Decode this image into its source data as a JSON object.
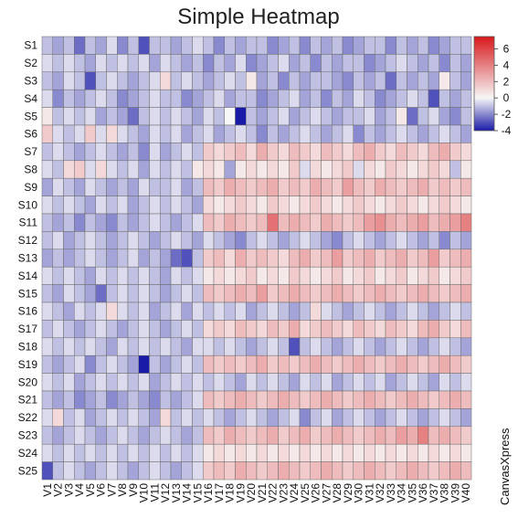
{
  "chart_data": {
    "type": "heatmap",
    "title": "Simple Heatmap",
    "rows": [
      "S1",
      "S2",
      "S3",
      "S4",
      "S5",
      "S6",
      "S7",
      "S8",
      "S9",
      "S10",
      "S11",
      "S12",
      "S13",
      "S14",
      "S15",
      "S16",
      "S17",
      "S18",
      "S19",
      "S20",
      "S21",
      "S22",
      "S23",
      "S24",
      "S25"
    ],
    "columns": [
      "V1",
      "V2",
      "V3",
      "V4",
      "V5",
      "V6",
      "V7",
      "V8",
      "V9",
      "V10",
      "V11",
      "V12",
      "V13",
      "V14",
      "V15",
      "V16",
      "V17",
      "V18",
      "V19",
      "V20",
      "V21",
      "V22",
      "V23",
      "V24",
      "V25",
      "V26",
      "V27",
      "V28",
      "V29",
      "V30",
      "V31",
      "V32",
      "V33",
      "V34",
      "V35",
      "V36",
      "V37",
      "V38",
      "V39",
      "V40"
    ],
    "values": [
      [
        -1,
        -1.5,
        -1,
        -2.5,
        -1,
        -1.5,
        -0.5,
        -2,
        -1,
        -3,
        -1,
        -1,
        -1.5,
        -1,
        -0.5,
        -1,
        -2,
        -1,
        -1.5,
        -1,
        -1,
        -2,
        -1.5,
        -1,
        -2,
        -1,
        -1.5,
        -1,
        -2,
        -1.5,
        -1,
        -1,
        -2,
        -1,
        -1.5,
        -1,
        -2,
        -1.5,
        -1,
        -1
      ],
      [
        -0.5,
        -1,
        -0.5,
        -1,
        -1.5,
        -0.5,
        -1,
        -0.5,
        -1,
        -0.5,
        -1.5,
        -0.5,
        -1,
        -1.5,
        -1,
        -2,
        -1,
        -1.5,
        -0.5,
        -2,
        -1.5,
        -1,
        -0.5,
        -1.5,
        -1,
        -2,
        -1,
        -1.5,
        -1,
        -1,
        -2,
        -1.5,
        -1,
        -0.5,
        -1,
        -1.5,
        -1,
        -2,
        -1,
        -1.5
      ],
      [
        -1,
        -1.5,
        -0.5,
        -1,
        -3,
        -1,
        -0.5,
        -1,
        -1.5,
        -1,
        -0.5,
        1,
        -1,
        -0.5,
        -1,
        -1.5,
        -1,
        -0.5,
        -1,
        0.5,
        -1.5,
        -1,
        -2,
        -1,
        -1.5,
        -1,
        -1,
        -1.5,
        -2,
        -1,
        -1.5,
        -1,
        -2.5,
        -1,
        -1.5,
        -1,
        -1.5,
        0.5,
        -1,
        -1.5
      ],
      [
        -0.5,
        -2,
        -1,
        -1.5,
        -1,
        -0.5,
        -1,
        -2,
        -1.5,
        -1,
        -0.5,
        -1,
        -1,
        -2,
        -1.5,
        -1,
        -0.5,
        -1.5,
        -1,
        -1,
        -2,
        -1.5,
        -1,
        -0.5,
        -1.5,
        -1,
        -2,
        -1,
        -1.5,
        -0.5,
        -1,
        -2,
        -1.5,
        -1,
        -0.5,
        -1,
        -3,
        -1,
        -1.5,
        -1
      ],
      [
        0.5,
        -1,
        -0.5,
        -1,
        -0.5,
        -1.5,
        -1,
        -1.5,
        -2.5,
        -1,
        -0.5,
        -1,
        -0.5,
        -1,
        -1.5,
        -0.5,
        -1,
        0,
        -4,
        -1,
        -1.5,
        -1,
        -0.5,
        -1.5,
        -1,
        -0.5,
        -1,
        -1.5,
        -1,
        -1,
        -0.5,
        -1.5,
        -1,
        0.5,
        -2.5,
        -1,
        -0.5,
        -1.5,
        -2,
        -1
      ],
      [
        1.5,
        -0.5,
        -1,
        -0.5,
        1.5,
        -0.5,
        1,
        -0.5,
        -1,
        -1.5,
        -0.5,
        -1,
        -0.5,
        -1.5,
        -1,
        -0.5,
        -1.5,
        -1,
        -0.5,
        -1,
        -2,
        -1,
        -1.5,
        -1,
        -0.5,
        -1,
        -1.5,
        -1,
        -0.5,
        -2,
        -1,
        -1.5,
        -1,
        -0.5,
        -1,
        -1.5,
        -1,
        -0.5,
        -1,
        -1.5
      ],
      [
        -1,
        -0.5,
        -1,
        -1.5,
        -1,
        -0.5,
        -1,
        -1.5,
        -1,
        -2,
        -0.5,
        -1.5,
        -1,
        -0.5,
        -1,
        1.5,
        1,
        1.5,
        2,
        1,
        2.5,
        1.5,
        1,
        2,
        1.5,
        1,
        2,
        1.5,
        1,
        2,
        2.5,
        1.5,
        1,
        2,
        1.5,
        1,
        2,
        2.5,
        1.5,
        1
      ],
      [
        -0.5,
        -1,
        1,
        1.5,
        -0.5,
        1,
        -0.5,
        -1,
        -0.5,
        -1.5,
        -0.5,
        -1,
        -0.5,
        -1,
        0.5,
        1,
        0.5,
        -1.5,
        0.5,
        1,
        0.5,
        1,
        0.5,
        1.5,
        -0.5,
        1,
        0.5,
        1,
        1.5,
        -0.5,
        1,
        0.5,
        1.5,
        1,
        0.5,
        1,
        1.5,
        1,
        -1,
        0.5
      ],
      [
        -1.5,
        -0.5,
        -1,
        -1.5,
        -0.5,
        -1,
        -1.5,
        -1,
        -1.5,
        -0.5,
        -1,
        -1,
        -0.5,
        -1.5,
        -1,
        2,
        1.5,
        2.5,
        2,
        1.5,
        2,
        2.5,
        1.5,
        2,
        1.5,
        2.5,
        2,
        1.5,
        3,
        2,
        1.5,
        2.5,
        2,
        1.5,
        2,
        2.5,
        1.5,
        2,
        1.5,
        2
      ],
      [
        -0.5,
        -1,
        -0.5,
        -1,
        -1.5,
        -0.5,
        -1,
        -0.5,
        -1.5,
        -1,
        -0.5,
        -1,
        -0.5,
        -1,
        -1.5,
        1,
        0.5,
        1,
        1.5,
        1,
        0.5,
        1.5,
        1,
        0.5,
        1,
        1.5,
        1,
        0.5,
        1,
        1.5,
        1,
        0.5,
        1,
        1.5,
        1,
        0.5,
        1,
        1.5,
        1,
        0.5
      ],
      [
        -1,
        -1.5,
        -1,
        -2,
        -1,
        -1.5,
        -2,
        -1,
        -1.5,
        -1,
        -0.5,
        -1,
        -1.5,
        -1,
        -0.5,
        2,
        1.5,
        2.5,
        2,
        1.5,
        2,
        4.5,
        2,
        2.5,
        2,
        1.5,
        2.5,
        2,
        1.5,
        2,
        3,
        3.5,
        2.5,
        2,
        2.5,
        3,
        2,
        2.5,
        3,
        4
      ],
      [
        -1,
        -0.5,
        -1.5,
        -1,
        -0.5,
        -1,
        -1.5,
        -1,
        -0.5,
        -1,
        -1.5,
        -1,
        -0.5,
        -1,
        -1.5,
        -0.5,
        -1,
        -1.5,
        -2,
        -1,
        -0.5,
        -1,
        -1.5,
        -1,
        -0.5,
        -1,
        -1.5,
        -2,
        -1,
        -0.5,
        -1,
        -1.5,
        -1,
        -0.5,
        -1,
        -1.5,
        -1,
        -2,
        -1,
        -1.5
      ],
      [
        -1.5,
        -1,
        -1.5,
        -1,
        -0.5,
        -1,
        -1.5,
        -1,
        -0.5,
        -1.5,
        -1,
        -1.5,
        -2.5,
        -3,
        -1,
        1.5,
        2,
        1,
        2.5,
        1.5,
        2,
        1.5,
        1,
        2,
        2.5,
        1.5,
        2,
        3,
        1.5,
        2,
        2.5,
        1.5,
        2,
        2.5,
        1.5,
        2,
        3,
        1.5,
        2,
        2.5
      ],
      [
        -0.5,
        -1,
        -0.5,
        -1,
        -1.5,
        -0.5,
        -1,
        -0.5,
        -1,
        -0.5,
        -1,
        -1.5,
        -0.5,
        -1,
        -0.5,
        0.5,
        1,
        0.5,
        1,
        1.5,
        0.5,
        1,
        0.5,
        1.5,
        1,
        0.5,
        1,
        1.5,
        0.5,
        1,
        1.5,
        0.5,
        1,
        1.5,
        0.5,
        1,
        1.5,
        0.5,
        1,
        1.5
      ],
      [
        -1,
        -1.5,
        -0.5,
        -1,
        -1.5,
        -2.5,
        -1,
        -0.5,
        -1,
        -0.5,
        -1,
        -1.5,
        -1,
        -0.5,
        -1,
        2,
        1.5,
        2,
        2.5,
        2,
        3,
        1.5,
        2,
        2.5,
        2,
        1.5,
        2,
        2.5,
        2,
        1.5,
        2,
        2.5,
        2,
        1.5,
        2,
        2.5,
        2,
        1.5,
        2,
        2.5
      ],
      [
        -0.5,
        -1,
        -1.5,
        -0.5,
        -1,
        -0.5,
        1,
        -0.5,
        -1,
        -0.5,
        -1.5,
        -1,
        -0.5,
        -1.5,
        -0.5,
        -1,
        -0.5,
        -1,
        -0.5,
        -1.5,
        -1,
        -0.5,
        -1,
        -1.5,
        -1,
        1,
        -0.5,
        -1,
        -1.5,
        -1,
        -0.5,
        -1,
        -1.5,
        -1,
        -0.5,
        -1,
        -1.5,
        -1,
        -0.5,
        -1
      ],
      [
        -1,
        -0.5,
        -1,
        -1.5,
        -1,
        -0.5,
        -1,
        -1.5,
        -1,
        -0.5,
        -1,
        -1.5,
        -1,
        -0.5,
        -1,
        1,
        1.5,
        1,
        2,
        1.5,
        1,
        2,
        1.5,
        2.5,
        1,
        1.5,
        2,
        1.5,
        1,
        2,
        1.5,
        1,
        2,
        1.5,
        1,
        2,
        2.5,
        1.5,
        1,
        2
      ],
      [
        -0.5,
        -1,
        -0.5,
        -1,
        -0.5,
        -1,
        -1.5,
        -0.5,
        -1,
        -0.5,
        -1,
        -0.5,
        -1,
        -1.5,
        -0.5,
        -0.5,
        -1,
        -0.5,
        -1,
        -1.5,
        -1,
        -0.5,
        -1,
        -3,
        -1,
        -0.5,
        -1,
        -1.5,
        -1,
        -0.5,
        -1,
        -1.5,
        -1,
        -0.5,
        -1,
        -1.5,
        -1,
        -0.5,
        -1,
        -1.5
      ],
      [
        -1,
        -1.5,
        -1,
        -0.5,
        -2,
        -1,
        -0.5,
        -1,
        -1.5,
        -4,
        -1,
        -1.5,
        -1,
        -0.5,
        -1,
        2,
        1.5,
        2,
        1.5,
        2,
        2.5,
        1.5,
        2,
        1.5,
        2,
        2.5,
        2,
        1.5,
        2,
        2.5,
        2,
        1.5,
        2,
        2.5,
        2,
        1.5,
        2,
        2.5,
        2,
        1.5
      ],
      [
        -0.5,
        -1,
        -0.5,
        -1.5,
        -1,
        -0.5,
        -1,
        -0.5,
        -1,
        -0.5,
        -1.5,
        -1,
        -0.5,
        -1,
        -0.5,
        -1,
        -0.5,
        -1,
        -1.5,
        -0.5,
        -1,
        -0.5,
        -1,
        -1.5,
        -0.5,
        -1,
        -0.5,
        -1.5,
        -1,
        -0.5,
        -1,
        -0.5,
        -1.5,
        -1,
        -0.5,
        -1,
        -1.5,
        -0.5,
        -1,
        -0.5
      ],
      [
        -1,
        -1.5,
        -1,
        -2,
        -1.5,
        -1,
        -2,
        -1.5,
        -1,
        -1.5,
        -2,
        -1,
        -1.5,
        -1,
        -0.5,
        2,
        1.5,
        2,
        2.5,
        2,
        1.5,
        2,
        2.5,
        2,
        1.5,
        2,
        2.5,
        2,
        1.5,
        2,
        2.5,
        2,
        1.5,
        2,
        2.5,
        2,
        1.5,
        2,
        2.5,
        2
      ],
      [
        -0.5,
        1,
        -1,
        -0.5,
        -1.5,
        -1,
        -0.5,
        -1,
        -0.5,
        -1,
        -1.5,
        1,
        -1,
        -0.5,
        -1,
        -0.5,
        -1,
        -1.5,
        -1,
        -0.5,
        -1,
        -1.5,
        -1,
        -0.5,
        -2,
        -1,
        -0.5,
        -1.5,
        -1,
        -0.5,
        -1,
        -1.5,
        -1,
        -0.5,
        -1,
        -1.5,
        -1,
        -0.5,
        -1,
        -1.5
      ],
      [
        -1,
        -1.5,
        -1,
        -0.5,
        -1,
        -1.5,
        -1,
        -0.5,
        -1,
        -1.5,
        -1,
        -0.5,
        -1,
        -1.5,
        -1,
        2,
        1.5,
        2.5,
        2,
        1.5,
        2,
        2.5,
        1.5,
        2,
        2.5,
        1.5,
        2,
        2.5,
        2,
        1.5,
        2,
        2.5,
        2,
        3,
        2.5,
        4,
        2,
        2.5,
        2,
        1.5
      ],
      [
        -0.5,
        -1,
        -0.5,
        -1,
        -0.5,
        -1,
        -0.5,
        -1,
        -0.5,
        -1,
        -0.5,
        -1,
        -0.5,
        -1,
        -0.5,
        0.5,
        1,
        0.5,
        1,
        0.5,
        1,
        0.5,
        1,
        0.5,
        1,
        0.5,
        1,
        0.5,
        1,
        0.5,
        1,
        0.5,
        1,
        0.5,
        1,
        0.5,
        1,
        0.5,
        1,
        0.5
      ],
      [
        -3,
        -1,
        -0.5,
        -1,
        -1.5,
        -1,
        -0.5,
        -1,
        -1.5,
        -1,
        -0.5,
        -1,
        -1.5,
        -1,
        -0.5,
        1.5,
        2,
        1.5,
        2.5,
        2,
        1.5,
        2,
        2.5,
        2,
        1.5,
        2,
        2.5,
        2,
        1.5,
        2,
        2.5,
        2,
        1.5,
        2,
        2.5,
        2,
        1.5,
        2,
        2.5,
        2
      ]
    ],
    "color_min": "#1a1aa8",
    "color_mid": "#f7f7f7",
    "color_max": "#d7191c",
    "legend_ticks": [
      6,
      4,
      2,
      0,
      -2,
      -4
    ],
    "legend_range": [
      -4,
      7.5
    ],
    "legend_placement": "top-right",
    "grid": true,
    "watermark": "CanvasXpress"
  }
}
